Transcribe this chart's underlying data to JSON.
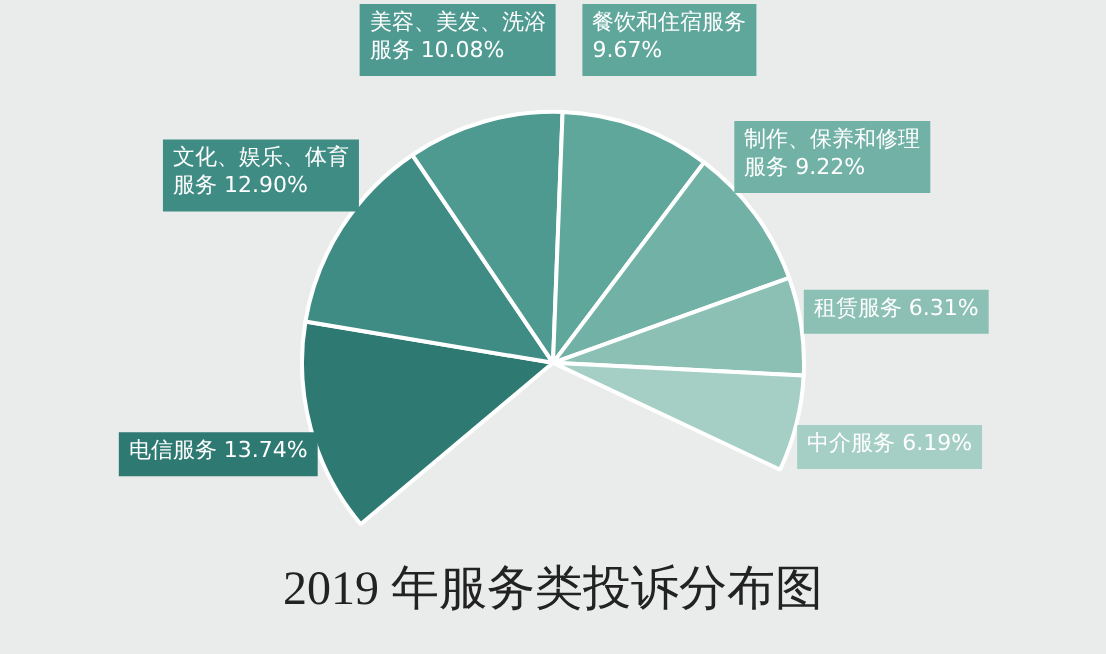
{
  "chart_data": {
    "type": "pie",
    "title": "2019 年服务类投诉分布图",
    "categories": [
      "电信服务",
      "文化、娱乐、体育服务",
      "美容、美发、洗浴服务",
      "餐饮和住宿服务",
      "制作、保养和修理服务",
      "租赁服务",
      "中介服务"
    ],
    "values": [
      13.74,
      12.9,
      10.08,
      9.67,
      9.22,
      6.31,
      6.19
    ],
    "value_labels": [
      "13.74%",
      "12.90%",
      "10.08%",
      "9.67%",
      "9.22%",
      "6.31%",
      "6.19%"
    ],
    "colors": [
      "#2e7a72",
      "#3f8c84",
      "#4f9a90",
      "#5fa69b",
      "#72b2a6",
      "#8cc0b4",
      "#a5cfc4"
    ],
    "legend": false
  }
}
